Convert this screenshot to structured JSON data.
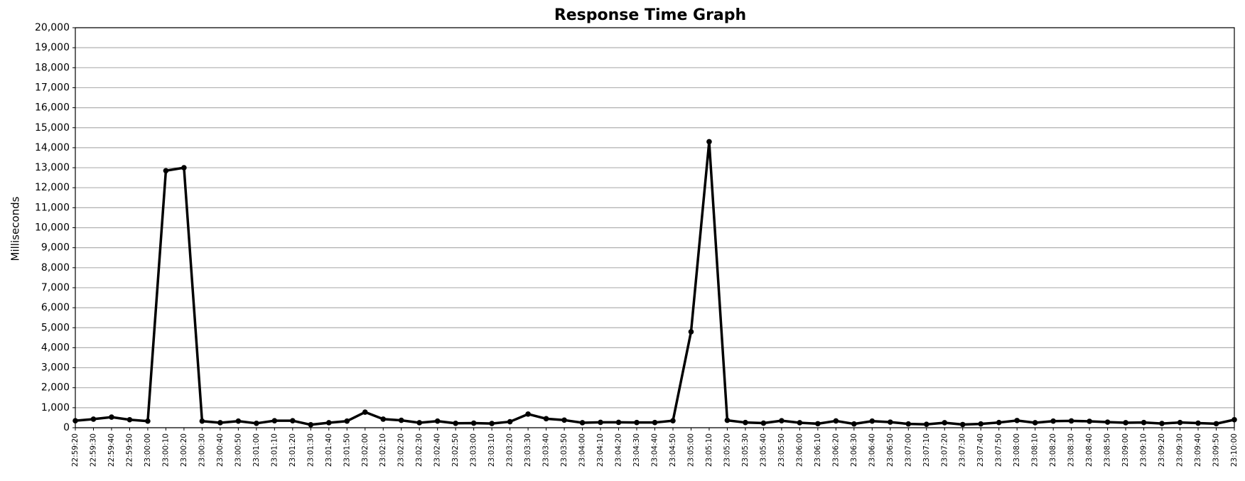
{
  "chart_data": {
    "type": "line",
    "title": "Response Time Graph",
    "y_label": "Milliseconds",
    "categories": [
      "22:59:20",
      "22:59:30",
      "22:59:40",
      "22:59:50",
      "23:00:00",
      "23:00:10",
      "23:00:20",
      "23:00:30",
      "23:00:40",
      "23:00:50",
      "23:01:00",
      "23:01:10",
      "23:01:20",
      "23:01:30",
      "23:01:40",
      "23:01:50",
      "23:02:00",
      "23:02:10",
      "23:02:20",
      "23:02:30",
      "23:02:40",
      "23:02:50",
      "23:03:00",
      "23:03:10",
      "23:03:20",
      "23:03:30",
      "23:03:40",
      "23:03:50",
      "23:04:00",
      "23:04:10",
      "23:04:20",
      "23:04:30",
      "23:04:40",
      "23:04:50",
      "23:05:00",
      "23:05:10",
      "23:05:20",
      "23:05:30",
      "23:05:40",
      "23:05:50",
      "23:06:00",
      "23:06:10",
      "23:06:20",
      "23:06:30",
      "23:06:40",
      "23:06:50",
      "23:07:00",
      "23:07:10",
      "23:07:20",
      "23:07:30",
      "23:07:40",
      "23:07:50",
      "23:08:00",
      "23:08:10",
      "23:08:20",
      "23:08:30",
      "23:08:40",
      "23:08:50",
      "23:09:00",
      "23:09:10",
      "23:09:20",
      "23:09:30",
      "23:09:40",
      "23:09:50",
      "23:10:00"
    ],
    "values": [
      350,
      430,
      530,
      400,
      330,
      12850,
      13000,
      330,
      250,
      330,
      220,
      350,
      350,
      150,
      250,
      330,
      780,
      430,
      370,
      250,
      330,
      220,
      230,
      210,
      300,
      680,
      450,
      380,
      250,
      270,
      270,
      260,
      260,
      350,
      4800,
      14300,
      370,
      260,
      230,
      350,
      250,
      200,
      340,
      190,
      330,
      280,
      190,
      170,
      250,
      160,
      190,
      260,
      360,
      250,
      330,
      340,
      320,
      280,
      250,
      260,
      210,
      260,
      230,
      200,
      400
    ],
    "color": "#000000",
    "ylim": [
      0,
      20000
    ],
    "yticks": [
      0,
      {
        "value": 1000,
        "label": "1,000"
      },
      {
        "value": 2000,
        "label": "2,000"
      },
      {
        "value": 3000,
        "label": "3,000"
      },
      {
        "value": 4000,
        "label": "4,000"
      },
      {
        "value": 5000,
        "label": "5,000"
      },
      {
        "value": 6000,
        "label": "6,000"
      },
      {
        "value": 7000,
        "label": "7,000"
      },
      {
        "value": 8000,
        "label": "8,000"
      },
      {
        "value": 9000,
        "label": "9,000"
      },
      {
        "value": 10000,
        "label": "10,000"
      },
      {
        "value": 11000,
        "label": "11,000"
      },
      {
        "value": 12000,
        "label": "12,000"
      },
      {
        "value": 13000,
        "label": "13,000"
      },
      {
        "value": 14000,
        "label": "14,000"
      },
      {
        "value": 15000,
        "label": "15,000"
      },
      {
        "value": 16000,
        "label": "16,000"
      },
      {
        "value": 17000,
        "label": "17,000"
      },
      {
        "value": 18000,
        "label": "18,000"
      },
      {
        "value": 19000,
        "label": "19,000"
      },
      {
        "value": 20000,
        "label": "20,000"
      }
    ],
    "grid": true
  }
}
